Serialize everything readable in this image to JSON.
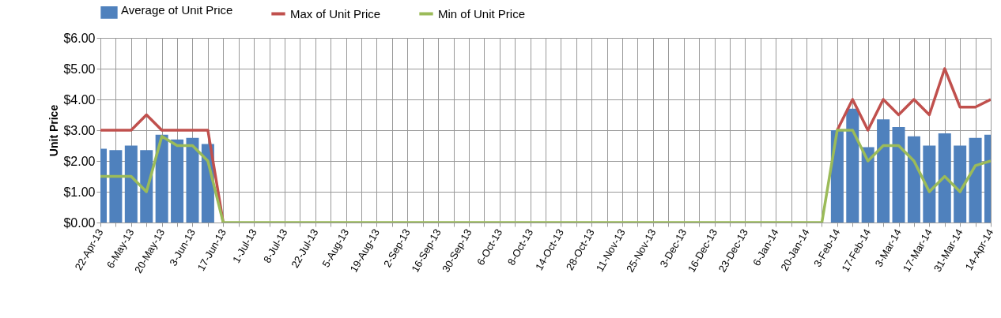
{
  "chart_data": {
    "type": "bar",
    "ylabel": "Unit Price",
    "legend": "top",
    "grid": true,
    "categories": [
      "22-Apr-13",
      null,
      "6-May-13",
      null,
      "20-May-13",
      null,
      "3-Jun-13",
      null,
      "17-Jun-13",
      null,
      "1-Jul-13",
      null,
      "8-Jul-13",
      null,
      "22-Jul-13",
      null,
      "5-Aug-13",
      null,
      "19-Aug-13",
      null,
      "2-Sep-13",
      null,
      "16-Sep-13",
      null,
      "30-Sep-13",
      null,
      "6-Oct-13",
      null,
      "8-Oct-13",
      null,
      "14-Oct-13",
      null,
      "28-Oct-13",
      null,
      "11-Nov-13",
      null,
      "25-Nov-13",
      null,
      "3-Dec-13",
      null,
      "16-Dec-13",
      null,
      "23-Dec-13",
      null,
      "6-Jan-14",
      null,
      "20-Jan-14",
      null,
      "3-Feb-14",
      null,
      "17-Feb-14",
      null,
      "3-Mar-14",
      null,
      "17-Mar-14",
      null,
      "31-Mar-14",
      null,
      "14-Apr-14"
    ],
    "ylim": [
      0,
      6
    ],
    "yticks": [
      {
        "value": 0,
        "label": "$0.00"
      },
      {
        "value": 1,
        "label": "$1.00"
      },
      {
        "value": 2,
        "label": "$2.00"
      },
      {
        "value": 3,
        "label": "$3.00"
      },
      {
        "value": 4,
        "label": "$4.00"
      },
      {
        "value": 5,
        "label": "$5.00"
      },
      {
        "value": 6,
        "label": "$6.00"
      }
    ],
    "series": [
      {
        "name": "Average of Unit Price",
        "color": "#4f81bd",
        "values": [
          2.4,
          2.35,
          2.5,
          2.35,
          2.85,
          2.7,
          2.75,
          2.55,
          0,
          0,
          0,
          0,
          0,
          0,
          0,
          0,
          0,
          0,
          0,
          0,
          0,
          0,
          0,
          0,
          0,
          0,
          0,
          0,
          0,
          0,
          0,
          0,
          0,
          0,
          0,
          0,
          0,
          0,
          0,
          0,
          0,
          0,
          0,
          0,
          0,
          0,
          0,
          0,
          3.0,
          3.7,
          2.45,
          3.35,
          3.1,
          2.8,
          2.5,
          2.9,
          2.5,
          2.75,
          2.85
        ]
      },
      {
        "name": "Max of Unit Price",
        "type": "line",
        "color": "#c0504d",
        "values": [
          3,
          3,
          3,
          3.5,
          3,
          3,
          3,
          3,
          0,
          null,
          null,
          null,
          null,
          null,
          null,
          null,
          null,
          null,
          null,
          null,
          null,
          null,
          null,
          null,
          null,
          null,
          null,
          null,
          null,
          null,
          null,
          null,
          null,
          null,
          null,
          null,
          null,
          null,
          null,
          null,
          null,
          null,
          null,
          null,
          null,
          null,
          null,
          null,
          3,
          4,
          3,
          4,
          3.5,
          4,
          3.5,
          5,
          3.75,
          3.75,
          4
        ]
      },
      {
        "name": "Min of Unit Price",
        "type": "line",
        "color": "#9bbb59",
        "values": [
          1.5,
          1.5,
          1.5,
          1,
          2.8,
          2.5,
          2.5,
          2,
          0,
          0,
          0,
          0,
          0,
          0,
          0,
          0,
          0,
          0,
          0,
          0,
          0,
          0,
          0,
          0,
          0,
          0,
          0,
          0,
          0,
          0,
          0,
          0,
          0,
          0,
          0,
          0,
          0,
          0,
          0,
          0,
          0,
          0,
          0,
          0,
          0,
          0,
          0,
          0,
          3,
          3,
          2,
          2.5,
          2.5,
          2,
          1,
          1.5,
          1,
          1.85,
          2
        ]
      }
    ]
  }
}
